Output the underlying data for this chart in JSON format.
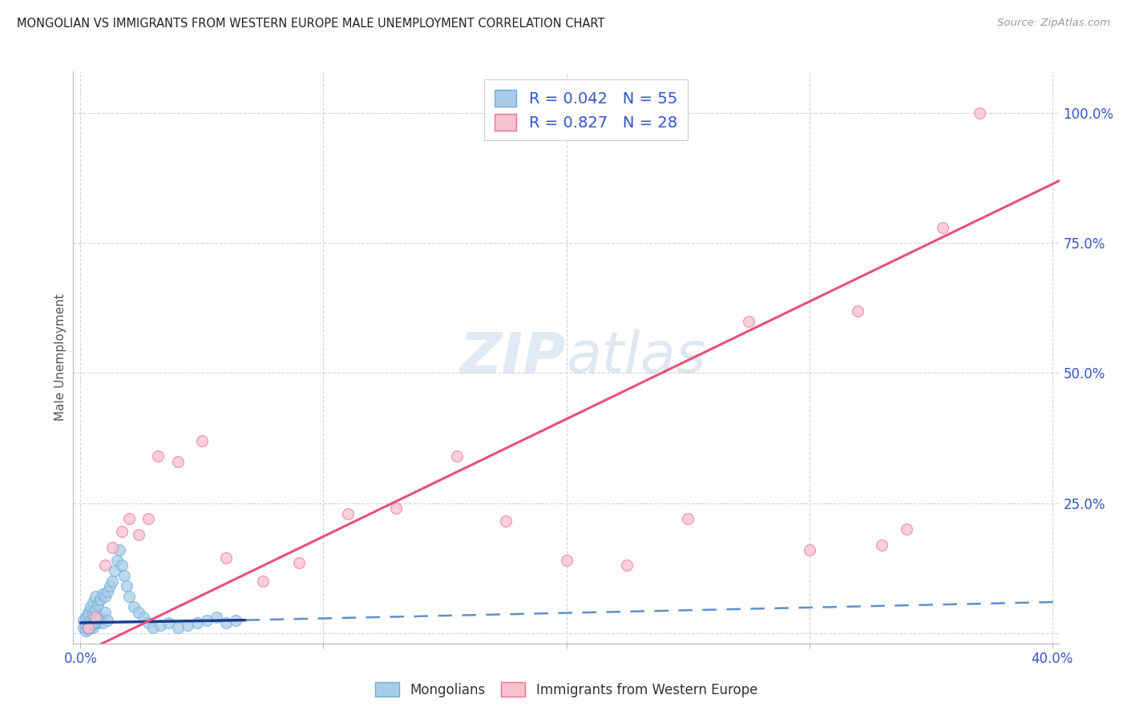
{
  "title": "MONGOLIAN VS IMMIGRANTS FROM WESTERN EUROPE MALE UNEMPLOYMENT CORRELATION CHART",
  "source": "Source: ZipAtlas.com",
  "ylabel": "Male Unemployment",
  "xlim": [
    -0.003,
    0.403
  ],
  "ylim": [
    -0.02,
    1.08
  ],
  "ytick_vals": [
    0.0,
    0.25,
    0.5,
    0.75,
    1.0
  ],
  "ytick_labels_right": [
    "",
    "25.0%",
    "50.0%",
    "75.0%",
    "100.0%"
  ],
  "xtick_vals": [
    0.0,
    0.1,
    0.2,
    0.3,
    0.4
  ],
  "xtick_labels": [
    "0.0%",
    "",
    "",
    "",
    "40.0%"
  ],
  "mongolian_color": "#a8cce8",
  "mongolian_edge": "#6baed6",
  "immigrant_color": "#f9c0d0",
  "immigrant_edge": "#f07090",
  "trend_blue_solid": "#1a3d8f",
  "trend_blue_dash": "#6090c8",
  "trend_pink": "#e8507a",
  "mongolian_R": 0.042,
  "mongolian_N": 55,
  "immigrant_R": 0.827,
  "immigrant_N": 28,
  "background": "#ffffff",
  "grid_color": "#d0d0d0",
  "legend_number_color": "#3355cc",
  "mongolians_x": [
    0.001,
    0.001,
    0.002,
    0.002,
    0.002,
    0.003,
    0.003,
    0.003,
    0.003,
    0.004,
    0.004,
    0.004,
    0.005,
    0.005,
    0.005,
    0.006,
    0.006,
    0.007,
    0.007,
    0.008,
    0.008,
    0.009,
    0.009,
    0.01,
    0.01,
    0.011,
    0.011,
    0.012,
    0.013,
    0.014,
    0.015,
    0.016,
    0.017,
    0.018,
    0.019,
    0.02,
    0.022,
    0.024,
    0.026,
    0.028,
    0.03,
    0.033,
    0.036,
    0.04,
    0.044,
    0.048,
    0.052,
    0.056,
    0.06,
    0.064,
    0.003,
    0.004,
    0.005,
    0.006,
    0.007
  ],
  "mongolians_y": [
    0.01,
    0.025,
    0.015,
    0.03,
    0.005,
    0.02,
    0.04,
    0.01,
    0.035,
    0.025,
    0.05,
    0.015,
    0.035,
    0.06,
    0.01,
    0.045,
    0.07,
    0.055,
    0.02,
    0.065,
    0.03,
    0.075,
    0.02,
    0.07,
    0.04,
    0.08,
    0.025,
    0.09,
    0.1,
    0.12,
    0.14,
    0.16,
    0.13,
    0.11,
    0.09,
    0.07,
    0.05,
    0.04,
    0.03,
    0.02,
    0.01,
    0.015,
    0.02,
    0.01,
    0.015,
    0.02,
    0.025,
    0.03,
    0.02,
    0.025,
    0.008,
    0.012,
    0.018,
    0.022,
    0.028
  ],
  "immigrants_x": [
    0.003,
    0.006,
    0.01,
    0.013,
    0.017,
    0.02,
    0.024,
    0.028,
    0.032,
    0.04,
    0.05,
    0.06,
    0.075,
    0.09,
    0.11,
    0.13,
    0.155,
    0.175,
    0.2,
    0.225,
    0.25,
    0.275,
    0.3,
    0.32,
    0.33,
    0.34,
    0.355,
    0.37
  ],
  "immigrants_y": [
    0.01,
    0.03,
    0.13,
    0.165,
    0.195,
    0.22,
    0.19,
    0.22,
    0.34,
    0.33,
    0.37,
    0.145,
    0.1,
    0.135,
    0.23,
    0.24,
    0.34,
    0.215,
    0.14,
    0.13,
    0.22,
    0.6,
    0.16,
    0.62,
    0.17,
    0.2,
    0.78,
    1.0
  ],
  "imm_trend_x0": 0.0,
  "imm_trend_y0": -0.04,
  "imm_trend_x1": 0.403,
  "imm_trend_y1": 0.87,
  "mon_trend_solid_x0": 0.0,
  "mon_trend_solid_y0": 0.02,
  "mon_trend_solid_x1": 0.068,
  "mon_trend_solid_y1": 0.025,
  "mon_trend_dash_x0": 0.068,
  "mon_trend_dash_y0": 0.025,
  "mon_trend_dash_x1": 0.403,
  "mon_trend_dash_y1": 0.06
}
